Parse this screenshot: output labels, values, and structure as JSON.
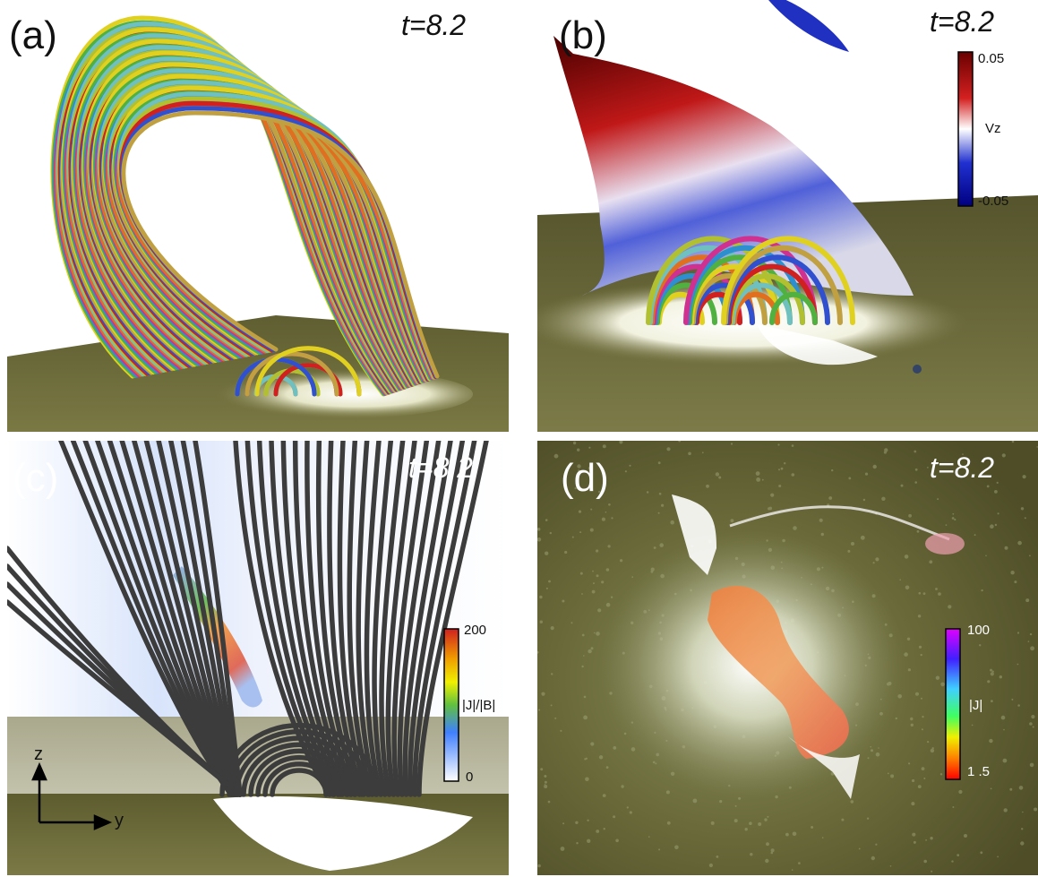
{
  "panels": [
    {
      "label": "(a)",
      "time": "t=8.2"
    },
    {
      "label": "(b)",
      "time": "t=8.2",
      "colorbar": {
        "max": "0.05",
        "title": "Vz",
        "min": "-0.05"
      }
    },
    {
      "label": "(c)",
      "time": "t=8.2",
      "colorbar": {
        "max": "200",
        "title": "|J|/|B|",
        "min": "0"
      }
    },
    {
      "label": "(d)",
      "time": "t=8.2",
      "colorbar": {
        "max": "100",
        "title": "|J|",
        "min": "1 .5"
      }
    }
  ],
  "axes": {
    "z": "z",
    "y": "y"
  },
  "colors": {
    "photosphere": "#6b6a3a",
    "field_lines": "#4a4a4a",
    "vz_scale": [
      "#7a0000",
      "#d42020",
      "#ffffff",
      "#2030d0",
      "#000080"
    ],
    "jb_scale": [
      "#d02020",
      "#f0a000",
      "#f0f000",
      "#60c040",
      "#4080ff",
      "#ffffff"
    ],
    "j_scale": [
      "#e000ff",
      "#4020ff",
      "#40d0ff",
      "#40ff60",
      "#f0f000",
      "#ff8000",
      "#ff0000"
    ]
  }
}
